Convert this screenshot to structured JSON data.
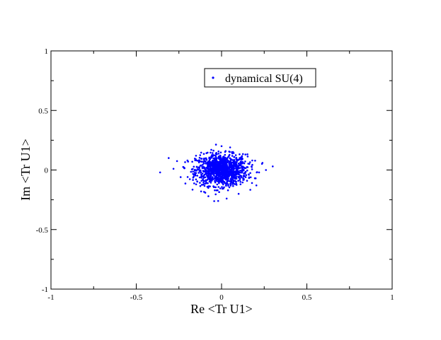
{
  "chart_data": {
    "type": "scatter",
    "xlabel": "Re <Tr U1>",
    "ylabel": "Im <Tr U1>",
    "xlim": [
      -1,
      1
    ],
    "ylim": [
      -1,
      1
    ],
    "x_ticks": [
      -1,
      -0.5,
      0,
      0.5,
      1
    ],
    "y_ticks": [
      -1,
      -0.5,
      0,
      0.5,
      1
    ],
    "x_tick_labels": [
      "-1",
      "-0.5",
      "0",
      "0.5",
      "1"
    ],
    "y_tick_labels": [
      "-1",
      "-0.5",
      "0",
      "0.5",
      "1"
    ],
    "grid": false,
    "legend_position": "top-right",
    "series": [
      {
        "name": "dynamical SU(4)",
        "color": "#0000ff",
        "marker": "dot",
        "cluster": {
          "center": [
            0.0,
            0.0
          ],
          "sigma_x": 0.075,
          "sigma_y": 0.065,
          "count": 1200
        },
        "points": [
          [
            -0.36,
            -0.02
          ],
          [
            -0.31,
            0.1
          ],
          [
            0.3,
            0.03
          ],
          [
            0.26,
            0.0
          ],
          [
            0.24,
            0.06
          ],
          [
            -0.24,
            -0.06
          ],
          [
            -0.2,
            0.08
          ],
          [
            0.2,
            -0.07
          ],
          [
            0.18,
            0.08
          ],
          [
            -0.02,
            -0.26
          ],
          [
            0.0,
            0.2
          ],
          [
            0.05,
            0.19
          ],
          [
            -0.06,
            0.17
          ],
          [
            0.1,
            -0.2
          ],
          [
            -0.12,
            -0.18
          ],
          [
            0.14,
            0.13
          ],
          [
            -0.15,
            0.12
          ],
          [
            0.03,
            -0.24
          ],
          [
            -0.22,
            0.02
          ],
          [
            0.22,
            -0.02
          ]
        ]
      }
    ]
  }
}
